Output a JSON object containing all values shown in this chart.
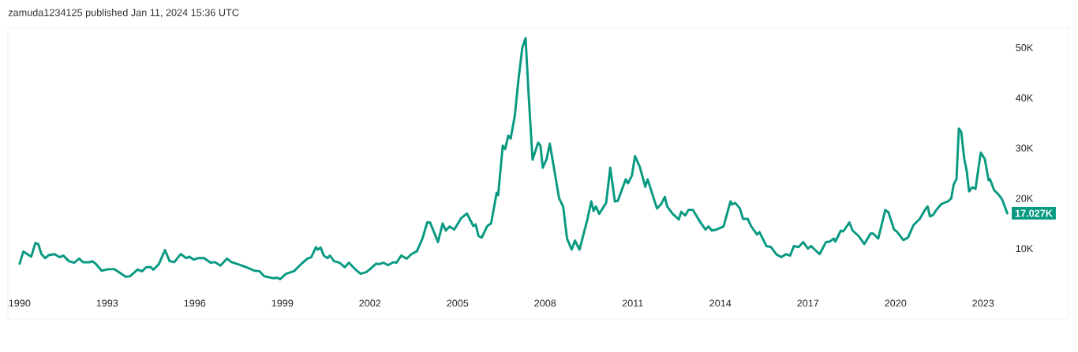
{
  "chart_data": {
    "type": "line",
    "title": "zamuda1234125 published Jan 11, 2024 15:36 UTC",
    "x": [
      1990.0,
      1990.13,
      1990.4,
      1990.54,
      1990.64,
      1990.75,
      1990.88,
      1991.0,
      1991.2,
      1991.37,
      1991.5,
      1991.69,
      1991.87,
      1992.04,
      1992.17,
      1992.41,
      1992.49,
      1992.62,
      1992.81,
      1993.03,
      1993.24,
      1993.43,
      1993.64,
      1993.78,
      1994.04,
      1994.2,
      1994.34,
      1994.5,
      1994.58,
      1994.77,
      1994.98,
      1995.14,
      1995.3,
      1995.52,
      1995.71,
      1995.81,
      1995.97,
      1996.11,
      1996.32,
      1996.54,
      1996.7,
      1996.88,
      1997.1,
      1997.26,
      1997.47,
      1997.77,
      1998.04,
      1998.22,
      1998.38,
      1998.7,
      1998.84,
      1998.92,
      1999.13,
      1999.4,
      1999.64,
      1999.86,
      1999.99,
      2000.15,
      2000.21,
      2000.31,
      2000.42,
      2000.55,
      2000.63,
      2000.77,
      2000.96,
      2001.14,
      2001.28,
      2001.49,
      2001.68,
      2001.87,
      2002.0,
      2002.21,
      2002.32,
      2002.46,
      2002.62,
      2002.8,
      2002.91,
      2003.07,
      2003.26,
      2003.42,
      2003.61,
      2003.8,
      2003.96,
      2004.06,
      2004.33,
      2004.49,
      2004.6,
      2004.73,
      2004.89,
      2005.13,
      2005.32,
      2005.54,
      2005.62,
      2005.72,
      2005.83,
      2006.02,
      2006.15,
      2006.34,
      2006.39,
      2006.55,
      2006.63,
      2006.74,
      2006.82,
      2006.96,
      2007.09,
      2007.22,
      2007.33,
      2007.44,
      2007.57,
      2007.76,
      2007.84,
      2007.92,
      2008.05,
      2008.16,
      2008.48,
      2008.62,
      2008.75,
      2008.91,
      2009.02,
      2009.18,
      2009.45,
      2009.58,
      2009.66,
      2009.74,
      2009.85,
      2010.09,
      2010.23,
      2010.39,
      2010.49,
      2010.76,
      2010.84,
      2010.97,
      2011.08,
      2011.24,
      2011.43,
      2011.51,
      2011.83,
      2011.97,
      2012.1,
      2012.18,
      2012.37,
      2012.58,
      2012.66,
      2012.8,
      2012.91,
      2013.06,
      2013.31,
      2013.49,
      2013.6,
      2013.71,
      2013.87,
      2014.11,
      2014.35,
      2014.4,
      2014.51,
      2014.67,
      2014.78,
      2014.94,
      2015.05,
      2015.26,
      2015.34,
      2015.58,
      2015.74,
      2015.93,
      2016.09,
      2016.25,
      2016.39,
      2016.52,
      2016.68,
      2016.84,
      2017.0,
      2017.11,
      2017.4,
      2017.62,
      2017.75,
      2017.89,
      2017.94,
      2018.13,
      2018.21,
      2018.42,
      2018.53,
      2018.74,
      2018.93,
      2019.15,
      2019.23,
      2019.41,
      2019.65,
      2019.76,
      2019.95,
      2020.06,
      2020.27,
      2020.43,
      2020.62,
      2020.83,
      2021.02,
      2021.1,
      2021.18,
      2021.29,
      2021.4,
      2021.56,
      2021.7,
      2021.8,
      2021.91,
      2021.99,
      2022.09,
      2022.17,
      2022.25,
      2022.36,
      2022.44,
      2022.52,
      2022.63,
      2022.74,
      2022.81,
      2022.92,
      2023.06,
      2023.19,
      2023.24,
      2023.38,
      2023.51,
      2023.65,
      2023.83
    ],
    "series": [
      {
        "color": "#089981",
        "values": [
          7000,
          9400,
          8400,
          11100,
          10900,
          8900,
          8100,
          8700,
          8900,
          8300,
          8600,
          7500,
          7200,
          8000,
          7300,
          7300,
          7500,
          6900,
          5600,
          5900,
          5900,
          5200,
          4400,
          4500,
          5800,
          5500,
          6300,
          6300,
          5800,
          6900,
          9700,
          7500,
          7300,
          8900,
          8100,
          8400,
          7800,
          8100,
          8100,
          7200,
          7300,
          6600,
          8000,
          7300,
          6900,
          6300,
          5600,
          5500,
          4500,
          4100,
          4200,
          3900,
          5000,
          5500,
          6900,
          8000,
          8300,
          10300,
          9800,
          10200,
          8600,
          8100,
          8600,
          7500,
          7200,
          6300,
          7200,
          5900,
          5000,
          5300,
          5900,
          7000,
          6900,
          7200,
          6700,
          7300,
          7200,
          8600,
          8000,
          8900,
          9500,
          12000,
          15200,
          15200,
          11300,
          15000,
          13600,
          14400,
          13800,
          16100,
          17000,
          14500,
          14800,
          12500,
          12200,
          14500,
          15000,
          21100,
          20600,
          30500,
          29800,
          32500,
          31900,
          36400,
          43800,
          50000,
          51900,
          40200,
          27700,
          31100,
          30500,
          26100,
          27800,
          30900,
          20000,
          18300,
          12000,
          9800,
          11600,
          9800,
          15900,
          19400,
          17500,
          18400,
          16900,
          19100,
          26100,
          19400,
          19500,
          23800,
          23000,
          24500,
          28400,
          26300,
          22300,
          23800,
          18000,
          18800,
          20300,
          18400,
          16900,
          15800,
          17300,
          16600,
          17700,
          17700,
          15300,
          13800,
          14400,
          13600,
          13800,
          14400,
          19400,
          18800,
          19100,
          18000,
          15900,
          15900,
          14500,
          12800,
          13300,
          10500,
          10300,
          8800,
          8300,
          8900,
          8600,
          10500,
          10300,
          11300,
          10000,
          10500,
          8900,
          11300,
          11400,
          12000,
          11400,
          13600,
          13400,
          15200,
          13600,
          12500,
          10900,
          13000,
          13000,
          12000,
          17700,
          17200,
          13800,
          13300,
          11700,
          12200,
          14700,
          15900,
          17800,
          18400,
          16400,
          16700,
          17700,
          18800,
          19200,
          19400,
          20000,
          22700,
          23900,
          33900,
          33300,
          27700,
          25500,
          21400,
          22200,
          21900,
          24700,
          29100,
          27800,
          23600,
          23800,
          21600,
          20900,
          19800,
          17027
        ]
      }
    ],
    "xlim": [
      1989.6,
      2025.9
    ],
    "xticks": [
      1990,
      1993,
      1996,
      1999,
      2002,
      2005,
      2008,
      2011,
      2014,
      2017,
      2020,
      2023
    ],
    "ylim": [
      -4000,
      54000
    ],
    "yticks": [
      {
        "value": 10000,
        "label": "10K"
      },
      {
        "value": 20000,
        "label": "20K"
      },
      {
        "value": 30000,
        "label": "30K"
      },
      {
        "value": 40000,
        "label": "40K"
      },
      {
        "value": 50000,
        "label": "50K"
      }
    ],
    "annotations": [
      {
        "text": "17.027K",
        "x": 2023.83,
        "y": 17027
      }
    ]
  }
}
